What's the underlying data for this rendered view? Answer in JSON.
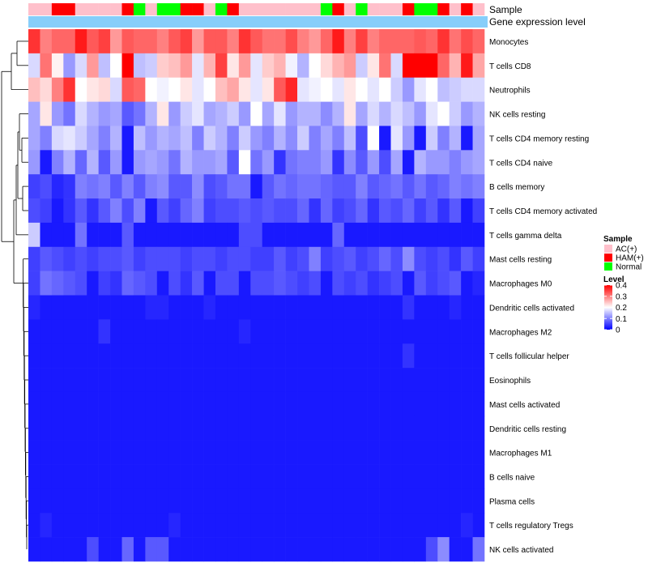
{
  "chart_data": {
    "type": "heatmap",
    "title": "",
    "annotations": {
      "sample_label": "Sample",
      "expression_label": "Gene expression level",
      "sample_groups": [
        "AC",
        "AC",
        "HAM",
        "HAM",
        "AC",
        "AC",
        "AC",
        "AC",
        "HAM",
        "Normal",
        "AC",
        "Normal",
        "Normal",
        "HAM",
        "HAM",
        "AC",
        "Normal",
        "HAM",
        "AC",
        "AC",
        "AC",
        "AC",
        "AC",
        "AC",
        "AC",
        "Normal",
        "HAM",
        "AC",
        "Normal",
        "AC",
        "AC",
        "AC",
        "HAM",
        "Normal",
        "Normal",
        "HAM",
        "AC",
        "HAM",
        "AC"
      ]
    },
    "rows": [
      "Monocytes",
      "T cells CD8",
      "Neutrophils",
      "NK cells resting",
      "T cells CD4 memory resting",
      "T cells CD4 naive",
      "B cells memory",
      "T cells CD4 memory activated",
      "T cells gamma delta",
      "Mast cells resting",
      "Macrophages M0",
      "Dendritic cells activated",
      "Macrophages M2",
      "T cells follicular helper",
      "Eosinophils",
      "Mast cells activated",
      "Dendritic cells resting",
      "Macrophages M1",
      "B cells naive",
      "Plasma cells",
      "T cells regulatory  Tregs",
      "NK cells activated"
    ],
    "values": [
      [
        0.36,
        0.3,
        0.32,
        0.32,
        0.38,
        0.33,
        0.35,
        0.28,
        0.33,
        0.32,
        0.32,
        0.3,
        0.33,
        0.35,
        0.28,
        0.33,
        0.33,
        0.3,
        0.36,
        0.33,
        0.31,
        0.31,
        0.34,
        0.3,
        0.28,
        0.32,
        0.38,
        0.3,
        0.35,
        0.3,
        0.32,
        0.32,
        0.32,
        0.33,
        0.32,
        0.36,
        0.31,
        0.34,
        0.32
      ],
      [
        0.17,
        0.31,
        0.21,
        0.12,
        0.17,
        0.28,
        0.15,
        0.2,
        0.4,
        0.15,
        0.16,
        0.24,
        0.25,
        0.28,
        0.18,
        0.26,
        0.35,
        0.22,
        0.28,
        0.18,
        0.24,
        0.26,
        0.19,
        0.14,
        0.2,
        0.23,
        0.26,
        0.28,
        0.16,
        0.22,
        0.31,
        0.17,
        0.4,
        0.4,
        0.4,
        0.32,
        0.26,
        0.38,
        0.27
      ],
      [
        0.25,
        0.23,
        0.3,
        0.36,
        0.2,
        0.22,
        0.23,
        0.17,
        0.33,
        0.32,
        0.2,
        0.19,
        0.2,
        0.22,
        0.18,
        0.2,
        0.25,
        0.27,
        0.22,
        0.18,
        0.22,
        0.33,
        0.37,
        0.18,
        0.19,
        0.2,
        0.18,
        0.22,
        0.2,
        0.18,
        0.2,
        0.16,
        0.12,
        0.18,
        0.2,
        0.15,
        0.16,
        0.17,
        0.17
      ],
      [
        0.13,
        0.22,
        0.12,
        0.09,
        0.17,
        0.14,
        0.12,
        0.13,
        0.07,
        0.09,
        0.14,
        0.22,
        0.12,
        0.16,
        0.18,
        0.13,
        0.14,
        0.16,
        0.12,
        0.2,
        0.13,
        0.18,
        0.12,
        0.14,
        0.14,
        0.11,
        0.14,
        0.22,
        0.13,
        0.17,
        0.14,
        0.17,
        0.15,
        0.12,
        0.18,
        0.2,
        0.16,
        0.12,
        0.14
      ],
      [
        0.13,
        0.1,
        0.17,
        0.18,
        0.16,
        0.13,
        0.1,
        0.14,
        0.02,
        0.15,
        0.12,
        0.14,
        0.13,
        0.15,
        0.1,
        0.16,
        0.14,
        0.1,
        0.16,
        0.12,
        0.1,
        0.14,
        0.11,
        0.16,
        0.1,
        0.13,
        0.1,
        0.15,
        0.06,
        0.2,
        0.02,
        0.18,
        0.12,
        0.02,
        0.16,
        0.1,
        0.14,
        0.02,
        0.13
      ],
      [
        0.12,
        0.02,
        0.1,
        0.14,
        0.08,
        0.14,
        0.07,
        0.12,
        0.02,
        0.12,
        0.13,
        0.12,
        0.09,
        0.14,
        0.12,
        0.12,
        0.13,
        0.07,
        0.2,
        0.09,
        0.12,
        0.04,
        0.09,
        0.1,
        0.1,
        0.12,
        0.04,
        0.11,
        0.07,
        0.12,
        0.06,
        0.13,
        0.02,
        0.14,
        0.12,
        0.12,
        0.1,
        0.12,
        0.13
      ],
      [
        0.05,
        0.06,
        0.03,
        0.04,
        0.1,
        0.09,
        0.1,
        0.07,
        0.1,
        0.07,
        0.1,
        0.11,
        0.07,
        0.07,
        0.11,
        0.06,
        0.07,
        0.09,
        0.09,
        0.02,
        0.07,
        0.09,
        0.08,
        0.09,
        0.09,
        0.08,
        0.07,
        0.07,
        0.1,
        0.07,
        0.08,
        0.09,
        0.07,
        0.09,
        0.07,
        0.08,
        0.1,
        0.09,
        0.1
      ],
      [
        0.06,
        0.05,
        0.02,
        0.04,
        0.07,
        0.04,
        0.07,
        0.1,
        0.06,
        0.1,
        0.02,
        0.07,
        0.05,
        0.08,
        0.1,
        0.05,
        0.06,
        0.06,
        0.07,
        0.06,
        0.07,
        0.06,
        0.06,
        0.08,
        0.04,
        0.08,
        0.05,
        0.06,
        0.08,
        0.04,
        0.07,
        0.06,
        0.08,
        0.05,
        0.07,
        0.04,
        0.07,
        0.02,
        0.05
      ],
      [
        0.16,
        0.02,
        0.02,
        0.02,
        0.09,
        0.02,
        0.02,
        0.02,
        0.07,
        0.02,
        0.02,
        0.02,
        0.02,
        0.02,
        0.02,
        0.02,
        0.02,
        0.02,
        0.06,
        0.06,
        0.02,
        0.02,
        0.02,
        0.02,
        0.02,
        0.02,
        0.08,
        0.02,
        0.02,
        0.02,
        0.02,
        0.02,
        0.02,
        0.02,
        0.02,
        0.02,
        0.02,
        0.02,
        0.02
      ],
      [
        0.05,
        0.07,
        0.06,
        0.05,
        0.06,
        0.05,
        0.06,
        0.06,
        0.07,
        0.05,
        0.06,
        0.06,
        0.06,
        0.05,
        0.06,
        0.06,
        0.05,
        0.06,
        0.06,
        0.05,
        0.05,
        0.07,
        0.05,
        0.06,
        0.1,
        0.05,
        0.06,
        0.07,
        0.05,
        0.06,
        0.08,
        0.06,
        0.11,
        0.06,
        0.05,
        0.06,
        0.04,
        0.07,
        0.05
      ],
      [
        0.05,
        0.09,
        0.08,
        0.07,
        0.06,
        0.02,
        0.05,
        0.04,
        0.08,
        0.07,
        0.06,
        0.02,
        0.06,
        0.04,
        0.07,
        0.02,
        0.06,
        0.06,
        0.02,
        0.06,
        0.06,
        0.07,
        0.06,
        0.05,
        0.06,
        0.02,
        0.06,
        0.05,
        0.06,
        0.04,
        0.05,
        0.06,
        0.02,
        0.07,
        0.05,
        0.06,
        0.07,
        0.02,
        0.03
      ],
      [
        0.03,
        0.02,
        0.02,
        0.02,
        0.02,
        0.02,
        0.02,
        0.02,
        0.02,
        0.02,
        0.03,
        0.03,
        0.02,
        0.02,
        0.02,
        0.03,
        0.02,
        0.02,
        0.02,
        0.02,
        0.02,
        0.02,
        0.02,
        0.02,
        0.02,
        0.02,
        0.02,
        0.02,
        0.02,
        0.02,
        0.02,
        0.02,
        0.04,
        0.02,
        0.02,
        0.02,
        0.03,
        0.02,
        0.02
      ],
      [
        0.02,
        0.02,
        0.02,
        0.02,
        0.02,
        0.02,
        0.04,
        0.02,
        0.02,
        0.02,
        0.02,
        0.02,
        0.02,
        0.02,
        0.02,
        0.02,
        0.02,
        0.02,
        0.03,
        0.02,
        0.02,
        0.02,
        0.02,
        0.02,
        0.02,
        0.02,
        0.02,
        0.02,
        0.02,
        0.02,
        0.02,
        0.02,
        0.02,
        0.02,
        0.02,
        0.02,
        0.02,
        0.02,
        0.02
      ],
      [
        0.02,
        0.02,
        0.02,
        0.02,
        0.02,
        0.02,
        0.02,
        0.02,
        0.02,
        0.02,
        0.02,
        0.02,
        0.02,
        0.02,
        0.02,
        0.02,
        0.02,
        0.02,
        0.02,
        0.02,
        0.02,
        0.02,
        0.02,
        0.02,
        0.02,
        0.02,
        0.02,
        0.02,
        0.02,
        0.02,
        0.02,
        0.02,
        0.04,
        0.02,
        0.02,
        0.02,
        0.02,
        0.02,
        0.02
      ],
      [
        0.02,
        0.02,
        0.02,
        0.02,
        0.02,
        0.02,
        0.02,
        0.02,
        0.02,
        0.02,
        0.02,
        0.02,
        0.02,
        0.02,
        0.02,
        0.02,
        0.02,
        0.02,
        0.02,
        0.02,
        0.02,
        0.02,
        0.02,
        0.02,
        0.02,
        0.02,
        0.02,
        0.02,
        0.02,
        0.02,
        0.02,
        0.02,
        0.02,
        0.02,
        0.02,
        0.02,
        0.02,
        0.02,
        0.02
      ],
      [
        0.02,
        0.02,
        0.02,
        0.02,
        0.02,
        0.02,
        0.02,
        0.02,
        0.02,
        0.02,
        0.02,
        0.02,
        0.02,
        0.02,
        0.02,
        0.02,
        0.02,
        0.02,
        0.02,
        0.02,
        0.02,
        0.02,
        0.02,
        0.02,
        0.02,
        0.02,
        0.02,
        0.02,
        0.02,
        0.02,
        0.02,
        0.02,
        0.02,
        0.02,
        0.02,
        0.02,
        0.02,
        0.02,
        0.02
      ],
      [
        0.02,
        0.02,
        0.02,
        0.02,
        0.02,
        0.02,
        0.02,
        0.02,
        0.02,
        0.02,
        0.02,
        0.02,
        0.02,
        0.02,
        0.02,
        0.02,
        0.02,
        0.02,
        0.02,
        0.02,
        0.02,
        0.02,
        0.02,
        0.02,
        0.02,
        0.02,
        0.02,
        0.02,
        0.02,
        0.02,
        0.02,
        0.02,
        0.02,
        0.02,
        0.02,
        0.02,
        0.02,
        0.02,
        0.02
      ],
      [
        0.02,
        0.02,
        0.02,
        0.02,
        0.02,
        0.02,
        0.02,
        0.02,
        0.02,
        0.02,
        0.02,
        0.02,
        0.02,
        0.02,
        0.02,
        0.02,
        0.02,
        0.02,
        0.02,
        0.02,
        0.02,
        0.02,
        0.02,
        0.02,
        0.02,
        0.02,
        0.02,
        0.02,
        0.02,
        0.02,
        0.02,
        0.02,
        0.02,
        0.02,
        0.02,
        0.02,
        0.02,
        0.02,
        0.02
      ],
      [
        0.02,
        0.02,
        0.02,
        0.02,
        0.02,
        0.02,
        0.02,
        0.02,
        0.02,
        0.02,
        0.02,
        0.02,
        0.02,
        0.02,
        0.02,
        0.02,
        0.02,
        0.02,
        0.02,
        0.02,
        0.02,
        0.02,
        0.02,
        0.02,
        0.02,
        0.02,
        0.02,
        0.02,
        0.02,
        0.02,
        0.02,
        0.02,
        0.02,
        0.02,
        0.02,
        0.02,
        0.02,
        0.02,
        0.02
      ],
      [
        0.02,
        0.02,
        0.02,
        0.02,
        0.02,
        0.02,
        0.02,
        0.02,
        0.02,
        0.02,
        0.02,
        0.02,
        0.02,
        0.02,
        0.02,
        0.02,
        0.02,
        0.02,
        0.02,
        0.02,
        0.02,
        0.02,
        0.02,
        0.02,
        0.02,
        0.02,
        0.02,
        0.02,
        0.02,
        0.02,
        0.02,
        0.02,
        0.02,
        0.02,
        0.02,
        0.02,
        0.02,
        0.02,
        0.02
      ],
      [
        0.02,
        0.03,
        0.02,
        0.02,
        0.02,
        0.02,
        0.02,
        0.02,
        0.02,
        0.02,
        0.02,
        0.02,
        0.03,
        0.02,
        0.02,
        0.02,
        0.02,
        0.02,
        0.02,
        0.02,
        0.02,
        0.02,
        0.02,
        0.02,
        0.02,
        0.02,
        0.02,
        0.02,
        0.02,
        0.02,
        0.02,
        0.02,
        0.02,
        0.02,
        0.02,
        0.02,
        0.02,
        0.03,
        0.02
      ],
      [
        0.02,
        0.02,
        0.02,
        0.02,
        0.02,
        0.06,
        0.02,
        0.02,
        0.08,
        0.02,
        0.07,
        0.07,
        0.02,
        0.02,
        0.02,
        0.02,
        0.02,
        0.02,
        0.02,
        0.02,
        0.02,
        0.02,
        0.02,
        0.02,
        0.02,
        0.02,
        0.02,
        0.02,
        0.02,
        0.02,
        0.02,
        0.02,
        0.02,
        0.02,
        0.06,
        0.11,
        0.02,
        0.02,
        0.09
      ]
    ],
    "scale": {
      "min": 0,
      "max": 0.4,
      "low_color": "#0000FF",
      "mid_color": "#FFFFFF",
      "high_color": "#FF0000",
      "mid_value": 0.2
    },
    "legend": {
      "position": "right",
      "sample": {
        "title": "Sample",
        "entries": [
          {
            "key": "AC",
            "label": "AC(+)",
            "color": "#FFC0CB"
          },
          {
            "key": "HAM",
            "label": "HAM(+)",
            "color": "#FF0000"
          },
          {
            "key": "Normal",
            "label": "Normal",
            "color": "#00FF00"
          }
        ]
      },
      "level": {
        "title": "Level",
        "ticks": [
          "0.4",
          "0.3",
          "0.2",
          "0.1",
          "0"
        ]
      }
    },
    "expression_color": "#87CEFA",
    "dendrogram_color": "#000000"
  }
}
